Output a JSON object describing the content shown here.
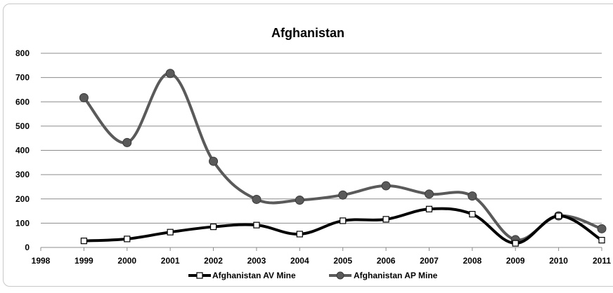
{
  "chart_data": {
    "type": "line",
    "title": "Afghanistan",
    "xlabel": "",
    "ylabel": "",
    "xlim": [
      1998,
      2011
    ],
    "ylim": [
      0,
      800
    ],
    "x_ticks": [
      "1998",
      "1999",
      "2000",
      "2001",
      "2002",
      "2003",
      "2004",
      "2005",
      "2006",
      "2007",
      "2008",
      "2009",
      "2010",
      "2011"
    ],
    "y_ticks": [
      "0",
      "100",
      "200",
      "300",
      "400",
      "500",
      "600",
      "700",
      "800"
    ],
    "grid": "horizontal",
    "legend_position": "bottom",
    "x": [
      1999,
      2000,
      2001,
      2002,
      2003,
      2004,
      2005,
      2006,
      2007,
      2008,
      2009,
      2010,
      2011
    ],
    "series": [
      {
        "name": "Afghanistan AV Mine",
        "color": "#000000",
        "marker": "square-open",
        "values": [
          27,
          35,
          63,
          85,
          92,
          55,
          110,
          116,
          158,
          137,
          17,
          130,
          30
        ]
      },
      {
        "name": "Afghanistan AP Mine",
        "color": "#5a5a5a",
        "marker": "circle-filled",
        "values": [
          617,
          432,
          717,
          355,
          198,
          195,
          216,
          254,
          220,
          212,
          32,
          130,
          77
        ]
      }
    ]
  }
}
